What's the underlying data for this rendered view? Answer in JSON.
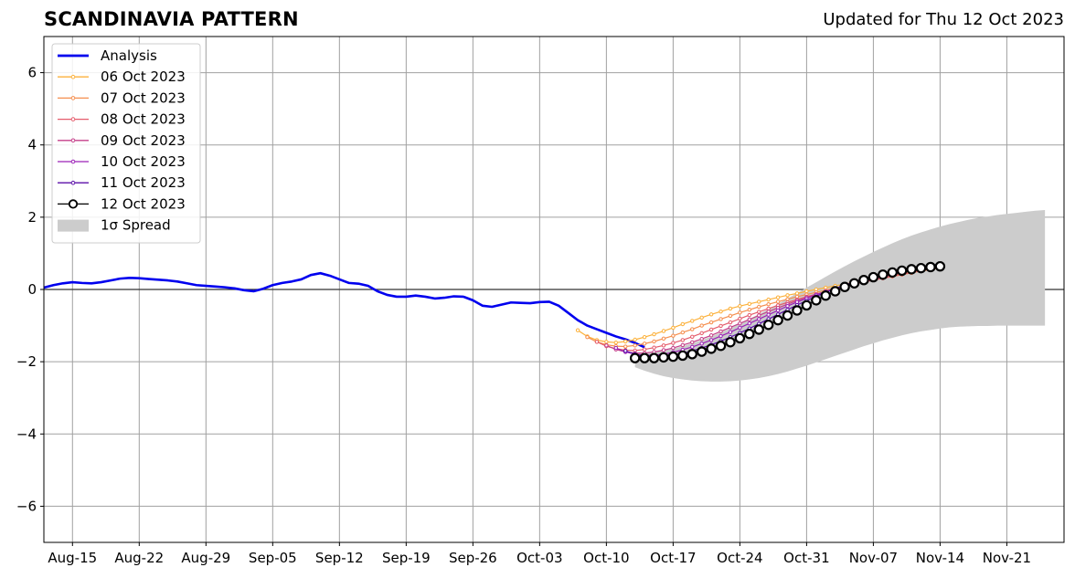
{
  "chart_data": {
    "type": "line",
    "title": "SCANDINAVIA PATTERN",
    "subtitle": "Updated for Thu 12 Oct 2023",
    "xlabel": "",
    "ylabel": "",
    "x_range": [
      "2023-08-12",
      "2023-11-27"
    ],
    "ylim": [
      -7,
      7
    ],
    "yticks": [
      -6,
      -4,
      -2,
      0,
      2,
      4,
      6
    ],
    "ytick_labels": [
      "−6",
      "−4",
      "−2",
      "0",
      "2",
      "4",
      "6"
    ],
    "xticks": [
      {
        "date": "2023-08-15",
        "label": "Aug-15"
      },
      {
        "date": "2023-08-22",
        "label": "Aug-22"
      },
      {
        "date": "2023-08-29",
        "label": "Aug-29"
      },
      {
        "date": "2023-09-05",
        "label": "Sep-05"
      },
      {
        "date": "2023-09-12",
        "label": "Sep-12"
      },
      {
        "date": "2023-09-19",
        "label": "Sep-19"
      },
      {
        "date": "2023-09-26",
        "label": "Sep-26"
      },
      {
        "date": "2023-10-03",
        "label": "Oct-03"
      },
      {
        "date": "2023-10-10",
        "label": "Oct-10"
      },
      {
        "date": "2023-10-17",
        "label": "Oct-17"
      },
      {
        "date": "2023-10-24",
        "label": "Oct-24"
      },
      {
        "date": "2023-10-31",
        "label": "Oct-31"
      },
      {
        "date": "2023-11-07",
        "label": "Nov-07"
      },
      {
        "date": "2023-11-14",
        "label": "Nov-14"
      },
      {
        "date": "2023-11-21",
        "label": "Nov-21"
      }
    ],
    "grid": true,
    "legend_position": "top-left",
    "analysis": {
      "name": "Analysis",
      "color": "#0000ee",
      "points": [
        [
          "2023-08-12",
          0.05
        ],
        [
          "2023-08-13",
          0.12
        ],
        [
          "2023-08-14",
          0.17
        ],
        [
          "2023-08-15",
          0.2
        ],
        [
          "2023-08-16",
          0.18
        ],
        [
          "2023-08-17",
          0.17
        ],
        [
          "2023-08-18",
          0.2
        ],
        [
          "2023-08-19",
          0.25
        ],
        [
          "2023-08-20",
          0.3
        ],
        [
          "2023-08-21",
          0.32
        ],
        [
          "2023-08-22",
          0.31
        ],
        [
          "2023-08-23",
          0.29
        ],
        [
          "2023-08-24",
          0.27
        ],
        [
          "2023-08-25",
          0.25
        ],
        [
          "2023-08-26",
          0.22
        ],
        [
          "2023-08-27",
          0.17
        ],
        [
          "2023-08-28",
          0.12
        ],
        [
          "2023-08-29",
          0.1
        ],
        [
          "2023-08-30",
          0.08
        ],
        [
          "2023-08-31",
          0.06
        ],
        [
          "2023-09-01",
          0.03
        ],
        [
          "2023-09-02",
          -0.02
        ],
        [
          "2023-09-03",
          -0.05
        ],
        [
          "2023-09-04",
          0.02
        ],
        [
          "2023-09-05",
          0.12
        ],
        [
          "2023-09-06",
          0.18
        ],
        [
          "2023-09-07",
          0.22
        ],
        [
          "2023-09-08",
          0.28
        ],
        [
          "2023-09-09",
          0.4
        ],
        [
          "2023-09-10",
          0.45
        ],
        [
          "2023-09-11",
          0.38
        ],
        [
          "2023-09-12",
          0.28
        ],
        [
          "2023-09-13",
          0.18
        ],
        [
          "2023-09-14",
          0.16
        ],
        [
          "2023-09-15",
          0.1
        ],
        [
          "2023-09-16",
          -0.05
        ],
        [
          "2023-09-17",
          -0.15
        ],
        [
          "2023-09-18",
          -0.2
        ],
        [
          "2023-09-19",
          -0.2
        ],
        [
          "2023-09-20",
          -0.17
        ],
        [
          "2023-09-21",
          -0.2
        ],
        [
          "2023-09-22",
          -0.25
        ],
        [
          "2023-09-23",
          -0.23
        ],
        [
          "2023-09-24",
          -0.19
        ],
        [
          "2023-09-25",
          -0.2
        ],
        [
          "2023-09-26",
          -0.3
        ],
        [
          "2023-09-27",
          -0.45
        ],
        [
          "2023-09-28",
          -0.48
        ],
        [
          "2023-09-29",
          -0.42
        ],
        [
          "2023-09-30",
          -0.36
        ],
        [
          "2023-10-01",
          -0.37
        ],
        [
          "2023-10-02",
          -0.38
        ],
        [
          "2023-10-03",
          -0.35
        ],
        [
          "2023-10-04",
          -0.34
        ],
        [
          "2023-10-05",
          -0.45
        ],
        [
          "2023-10-06",
          -0.65
        ],
        [
          "2023-10-07",
          -0.85
        ],
        [
          "2023-10-08",
          -1.0
        ],
        [
          "2023-10-09",
          -1.1
        ],
        [
          "2023-10-10",
          -1.2
        ],
        [
          "2023-10-11",
          -1.3
        ],
        [
          "2023-10-12",
          -1.38
        ],
        [
          "2023-10-13",
          -1.48
        ],
        [
          "2023-10-14",
          -1.6
        ]
      ]
    },
    "series": [
      {
        "name": "06 Oct 2023",
        "color": "#fcb13b",
        "values": [
          -1.13,
          -1.3,
          -1.4,
          -1.45,
          -1.47,
          -1.44,
          -1.39,
          -1.32,
          -1.24,
          -1.15,
          -1.06,
          -0.96,
          -0.87,
          -0.78,
          -0.69,
          -0.61,
          -0.53,
          -0.46,
          -0.4,
          -0.34,
          -0.28,
          -0.22,
          -0.16,
          -0.11,
          -0.05,
          0.0,
          0.05,
          0.1,
          0.15,
          0.2,
          0.25,
          0.3,
          0.35,
          0.4,
          0.45,
          0.5,
          0.54,
          0.58,
          0.62
        ]
      },
      {
        "name": "07 Oct 2023",
        "color": "#f58e4e",
        "values": [
          -1.32,
          -1.45,
          -1.53,
          -1.57,
          -1.58,
          -1.55,
          -1.5,
          -1.44,
          -1.36,
          -1.28,
          -1.19,
          -1.1,
          -1.0,
          -0.91,
          -0.82,
          -0.73,
          -0.64,
          -0.56,
          -0.48,
          -0.41,
          -0.34,
          -0.27,
          -0.2,
          -0.14,
          -0.08,
          -0.02,
          0.04,
          0.1,
          0.15,
          0.21,
          0.26,
          0.31,
          0.36,
          0.41,
          0.46,
          0.51,
          0.55,
          0.59
        ]
      },
      {
        "name": "08 Oct 2023",
        "color": "#e55c6c",
        "values": [
          -1.45,
          -1.57,
          -1.64,
          -1.68,
          -1.69,
          -1.66,
          -1.61,
          -1.55,
          -1.48,
          -1.4,
          -1.31,
          -1.21,
          -1.11,
          -1.01,
          -0.91,
          -0.81,
          -0.71,
          -0.62,
          -0.53,
          -0.44,
          -0.36,
          -0.28,
          -0.2,
          -0.13,
          -0.06,
          0.01,
          0.07,
          0.14,
          0.2,
          0.26,
          0.31,
          0.37,
          0.42,
          0.47,
          0.52,
          0.57,
          0.61
        ]
      },
      {
        "name": "09 Oct 2023",
        "color": "#c53f8a",
        "values": [
          -1.55,
          -1.66,
          -1.73,
          -1.76,
          -1.76,
          -1.73,
          -1.68,
          -1.62,
          -1.54,
          -1.46,
          -1.37,
          -1.27,
          -1.16,
          -1.05,
          -0.94,
          -0.83,
          -0.72,
          -0.61,
          -0.51,
          -0.41,
          -0.31,
          -0.22,
          -0.14,
          -0.06,
          0.02,
          0.09,
          0.16,
          0.23,
          0.29,
          0.35,
          0.41,
          0.47,
          0.52,
          0.57,
          0.61,
          0.65
        ]
      },
      {
        "name": "10 Oct 2023",
        "color": "#9c22b8",
        "values": [
          -1.62,
          -1.73,
          -1.79,
          -1.82,
          -1.82,
          -1.79,
          -1.74,
          -1.67,
          -1.59,
          -1.5,
          -1.4,
          -1.29,
          -1.18,
          -1.06,
          -0.94,
          -0.82,
          -0.7,
          -0.58,
          -0.46,
          -0.35,
          -0.25,
          -0.15,
          -0.06,
          0.03,
          0.11,
          0.19,
          0.26,
          0.33,
          0.39,
          0.45,
          0.5,
          0.55,
          0.59,
          0.63,
          0.66
        ]
      },
      {
        "name": "11 Oct 2023",
        "color": "#5b0fa8",
        "values": [
          -1.7,
          -1.79,
          -1.84,
          -1.86,
          -1.85,
          -1.82,
          -1.77,
          -1.7,
          -1.62,
          -1.53,
          -1.43,
          -1.32,
          -1.2,
          -1.08,
          -0.95,
          -0.82,
          -0.69,
          -0.56,
          -0.43,
          -0.31,
          -0.19,
          -0.08,
          0.02,
          0.12,
          0.21,
          0.29,
          0.37,
          0.44,
          0.5,
          0.55,
          0.6,
          0.64,
          0.67,
          0.7
        ]
      },
      {
        "name": "12 Oct 2023",
        "color": "#000000",
        "values": [
          -1.9,
          -1.9,
          -1.9,
          -1.88,
          -1.86,
          -1.83,
          -1.79,
          -1.72,
          -1.64,
          -1.56,
          -1.46,
          -1.35,
          -1.23,
          -1.11,
          -0.98,
          -0.85,
          -0.72,
          -0.58,
          -0.44,
          -0.3,
          -0.17,
          -0.05,
          0.07,
          0.17,
          0.26,
          0.34,
          0.41,
          0.47,
          0.52,
          0.56,
          0.59,
          0.62,
          0.64
        ]
      }
    ],
    "forecast_start_dates": [
      "2023-10-07",
      "2023-10-08",
      "2023-10-09",
      "2023-10-10",
      "2023-10-11",
      "2023-10-12",
      "2023-10-13"
    ],
    "spread": {
      "name": "1σ Spread",
      "color": "#cccccc",
      "start_date": "2023-10-13",
      "upper": [
        -1.75,
        -1.75,
        -1.73,
        -1.69,
        -1.64,
        -1.57,
        -1.49,
        -1.4,
        -1.3,
        -1.19,
        -1.07,
        -0.95,
        -0.82,
        -0.68,
        -0.54,
        -0.4,
        -0.25,
        -0.1,
        0.05,
        0.2,
        0.35,
        0.5,
        0.64,
        0.78,
        0.91,
        1.04,
        1.16,
        1.28,
        1.39,
        1.49,
        1.58,
        1.66,
        1.74,
        1.81,
        1.87,
        1.93,
        1.98,
        2.02,
        2.06,
        2.09,
        2.12,
        2.15,
        2.18,
        2.2
      ],
      "lower": [
        -2.15,
        -2.25,
        -2.33,
        -2.4,
        -2.45,
        -2.49,
        -2.52,
        -2.54,
        -2.55,
        -2.55,
        -2.54,
        -2.52,
        -2.49,
        -2.45,
        -2.4,
        -2.34,
        -2.27,
        -2.19,
        -2.11,
        -2.02,
        -1.93,
        -1.84,
        -1.75,
        -1.66,
        -1.57,
        -1.49,
        -1.41,
        -1.34,
        -1.27,
        -1.21,
        -1.16,
        -1.12,
        -1.08,
        -1.05,
        -1.03,
        -1.02,
        -1.01,
        -1.01,
        -1.0,
        -1.0,
        -1.0,
        -1.0,
        -1.0,
        -1.0
      ]
    }
  }
}
